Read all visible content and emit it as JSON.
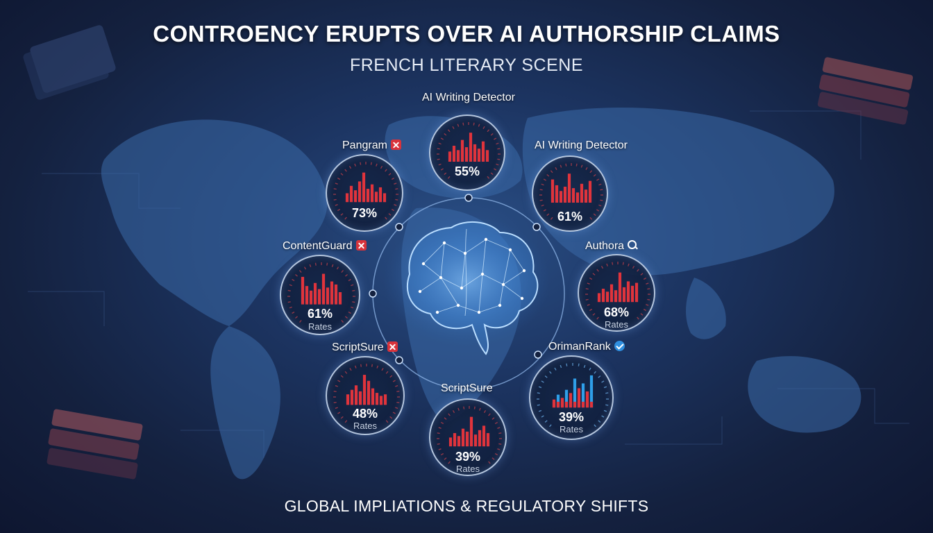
{
  "title": "CONTROENCY ERUPTS OVER AI AUTHORSHIP CLAIMS",
  "subtitle": "FRENCH LITERARY SCENE",
  "footer": "GLOBAL IMPLIATIONS & REGULATORY SHIFTS",
  "colors": {
    "bar_red": "#e0343c",
    "bar_blue": "#2f9fe8",
    "ring": "#d2e4fa",
    "background": "#1c3461"
  },
  "center_icon": "brain-network-icon",
  "detectors": [
    {
      "id": "top",
      "label": "AI Writing Detector",
      "badge": "",
      "percent": "55%",
      "rates": "",
      "bars": [
        0.35,
        0.55,
        0.4,
        0.75,
        0.5,
        1.0,
        0.6,
        0.45,
        0.7,
        0.4
      ]
    },
    {
      "id": "upper-right",
      "label": "AI Writing Detector",
      "badge": "",
      "percent": "61%",
      "rates": "",
      "bars": [
        0.8,
        0.6,
        0.4,
        0.55,
        1.0,
        0.5,
        0.35,
        0.65,
        0.45,
        0.75
      ]
    },
    {
      "id": "upper-left",
      "label": "Pangram",
      "badge": "x-badge-icon",
      "percent": "73%",
      "rates": "",
      "bars": [
        0.3,
        0.55,
        0.4,
        0.7,
        1.0,
        0.45,
        0.6,
        0.35,
        0.5,
        0.3
      ]
    },
    {
      "id": "mid-right",
      "label": "Authora",
      "badge": "search-icon",
      "percent": "68%",
      "rates": "Rates",
      "bars": [
        0.3,
        0.45,
        0.35,
        0.6,
        0.4,
        1.0,
        0.5,
        0.7,
        0.55,
        0.65
      ]
    },
    {
      "id": "mid-left",
      "label": "ContentGuard",
      "badge": "x-badge-icon",
      "percent": "61%",
      "rates": "Rates",
      "bars": [
        0.9,
        0.6,
        0.45,
        0.7,
        0.5,
        1.0,
        0.55,
        0.75,
        0.65,
        0.4
      ]
    },
    {
      "id": "lower-right",
      "label": "OrimanRank",
      "badge": "check-badge-icon",
      "percent": "39%",
      "rates": "Rates",
      "bars": [
        0.25,
        0.4,
        0.3,
        0.55,
        0.45,
        0.9,
        0.6,
        0.75,
        0.5,
        1.0
      ],
      "mixed": true
    },
    {
      "id": "lower-left",
      "label": "ScriptSure",
      "badge": "x-badge-icon",
      "percent": "48%",
      "rates": "Rates",
      "bars": [
        0.35,
        0.5,
        0.65,
        0.45,
        1.0,
        0.8,
        0.55,
        0.4,
        0.3,
        0.35
      ]
    },
    {
      "id": "bottom",
      "label": "ScriptSure",
      "badge": "",
      "percent": "39%",
      "rates": "Rates",
      "bars": [
        0.3,
        0.45,
        0.35,
        0.6,
        0.5,
        1.0,
        0.4,
        0.55,
        0.7,
        0.45
      ]
    }
  ]
}
